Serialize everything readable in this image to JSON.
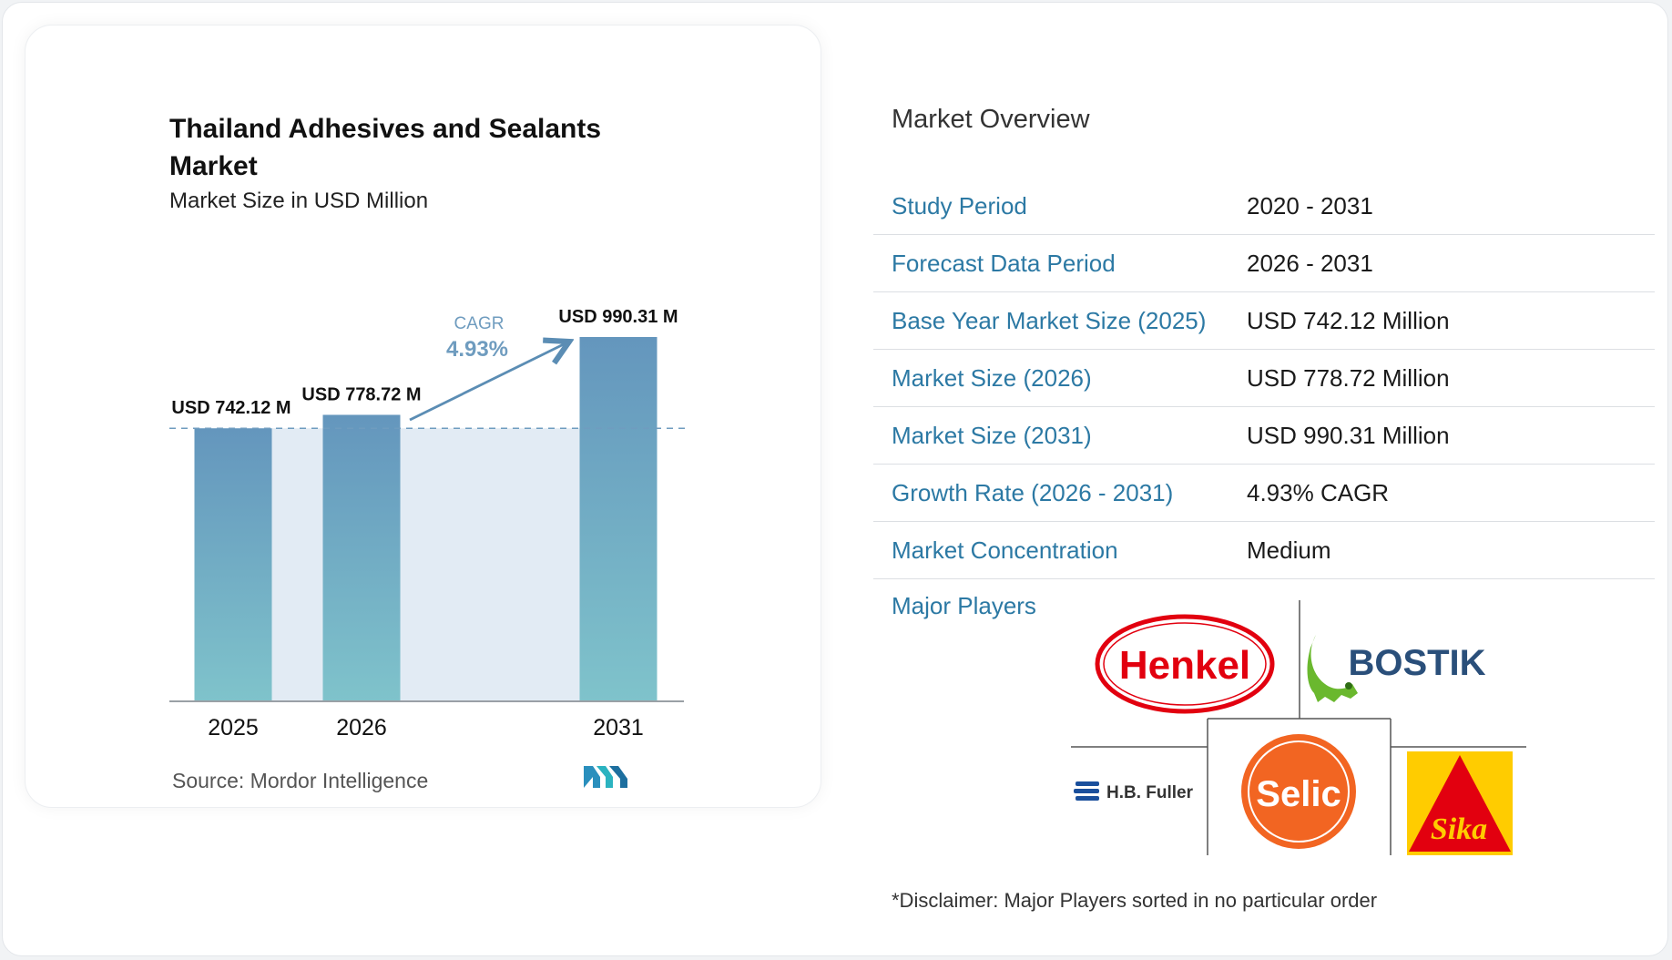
{
  "chart_data": {
    "type": "bar",
    "title": "Thailand Adhesives and Sealants Market",
    "subtitle": "Market Size in USD Million",
    "categories": [
      "2025",
      "2026",
      "2031"
    ],
    "values": [
      742.12,
      778.72,
      990.31
    ],
    "data_labels": [
      "USD 742.12 M",
      "USD 778.72 M",
      "USD 990.31 M"
    ],
    "cagr_label": "CAGR",
    "cagr_value": "4.93%",
    "baseline_value": 742.12,
    "source": "Source:  Mordor Intelligence"
  },
  "colors": {
    "bar_top": "#6496bd",
    "bar_bottom": "#7fc3cb",
    "accent": "#2c79a4",
    "band": "#e2ebf4"
  },
  "overview": {
    "title": "Market Overview",
    "rows": [
      {
        "label": "Study Period",
        "value": "2020 - 2031"
      },
      {
        "label": "Forecast Data Period",
        "value": "2026 - 2031"
      },
      {
        "label": "Base Year Market Size (2025)",
        "value": "USD 742.12 Million"
      },
      {
        "label": "Market Size (2026)",
        "value": "USD 778.72 Million"
      },
      {
        "label": "Market Size (2031)",
        "value": "USD 990.31 Million"
      },
      {
        "label": "Growth Rate (2026 - 2031)",
        "value": "4.93% CAGR"
      },
      {
        "label": "Market Concentration",
        "value": "Medium"
      }
    ],
    "players_label": "Major Players",
    "players": [
      "Henkel",
      "BOSTIK",
      "H.B. Fuller",
      "Selic",
      "Sika"
    ],
    "disclaimer": "*Disclaimer: Major Players sorted in no particular order"
  }
}
